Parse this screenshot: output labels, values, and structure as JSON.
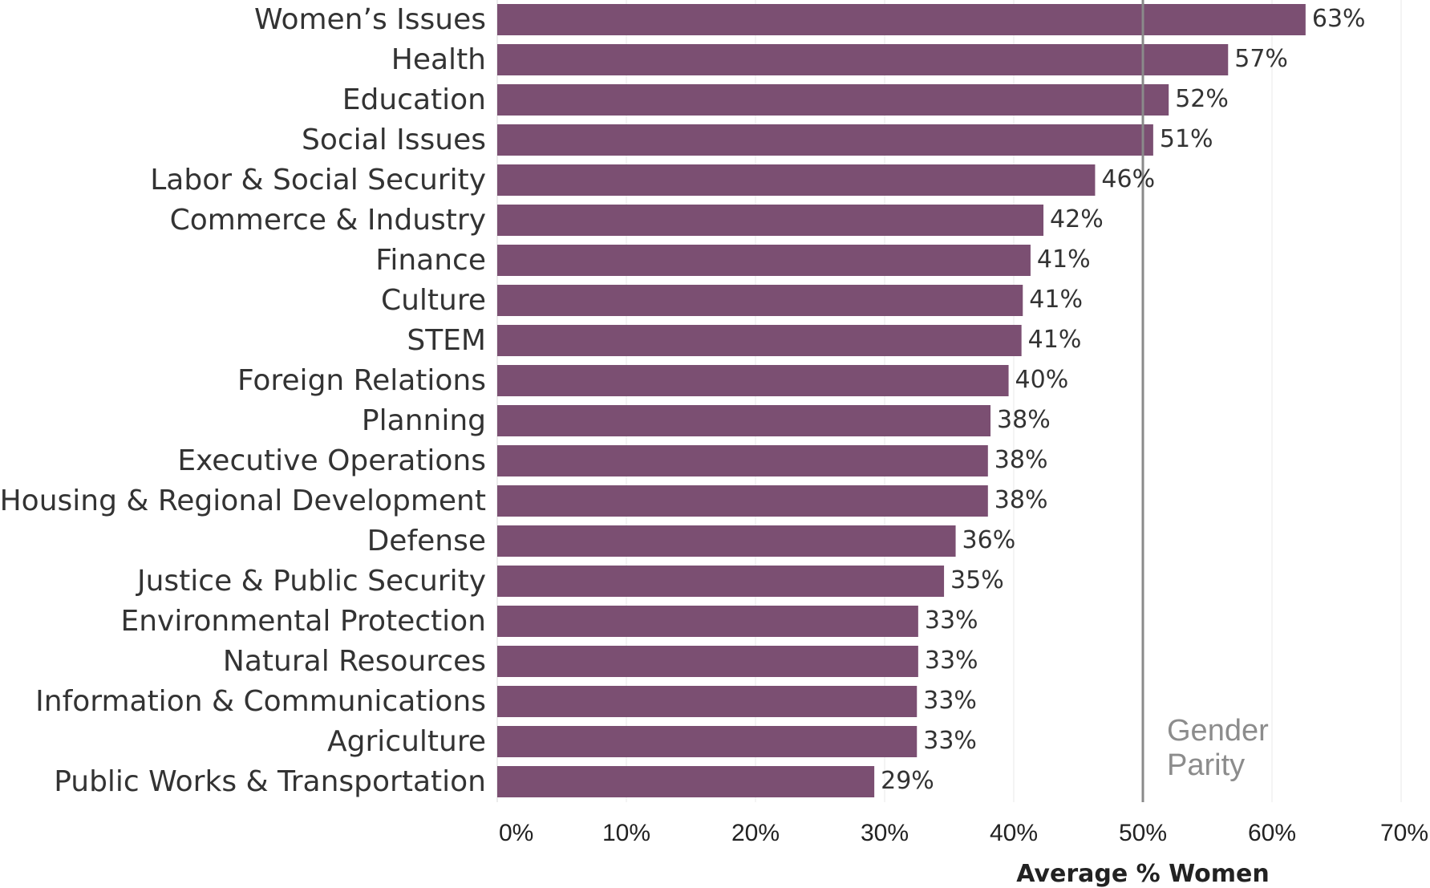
{
  "chart_data": {
    "type": "bar",
    "orientation": "horizontal",
    "categories": [
      "Women’s Issues",
      "Health",
      "Education",
      "Social Issues",
      "Labor & Social Security",
      "Commerce & Industry",
      "Finance",
      "Culture",
      "STEM",
      "Foreign Relations",
      "Planning",
      "Executive Operations",
      "Housing & Regional Development",
      "Defense",
      "Justice & Public Security",
      "Environmental Protection",
      "Natural Resources",
      "Information & Communications",
      "Agriculture",
      "Public Works & Transportation"
    ],
    "values": [
      62.6,
      56.6,
      52.0,
      50.8,
      46.3,
      42.3,
      41.3,
      40.7,
      40.6,
      39.6,
      38.2,
      38.0,
      38.0,
      35.5,
      34.6,
      32.6,
      32.6,
      32.5,
      32.5,
      29.2
    ],
    "data_labels": [
      "63%",
      "57%",
      "52%",
      "51%",
      "46%",
      "42%",
      "41%",
      "41%",
      "41%",
      "40%",
      "38%",
      "38%",
      "38%",
      "36%",
      "35%",
      "33%",
      "33%",
      "33%",
      "33%",
      "29%"
    ],
    "xlabel": "Average % Women",
    "ylabel": "",
    "xlim": [
      0,
      70
    ],
    "x_ticks": [
      0,
      10,
      20,
      30,
      40,
      50,
      60,
      70
    ],
    "x_tick_labels": [
      "0%",
      "10%",
      "20%",
      "30%",
      "40%",
      "50%",
      "60%",
      "70%"
    ],
    "grid": true,
    "reference_line": {
      "value": 50,
      "label_line1": "Gender",
      "label_line2": "Parity"
    },
    "colors": {
      "bar": "#7b4f72",
      "reference_line": "#8a8a8a",
      "grid": "#e8e8e8"
    }
  }
}
